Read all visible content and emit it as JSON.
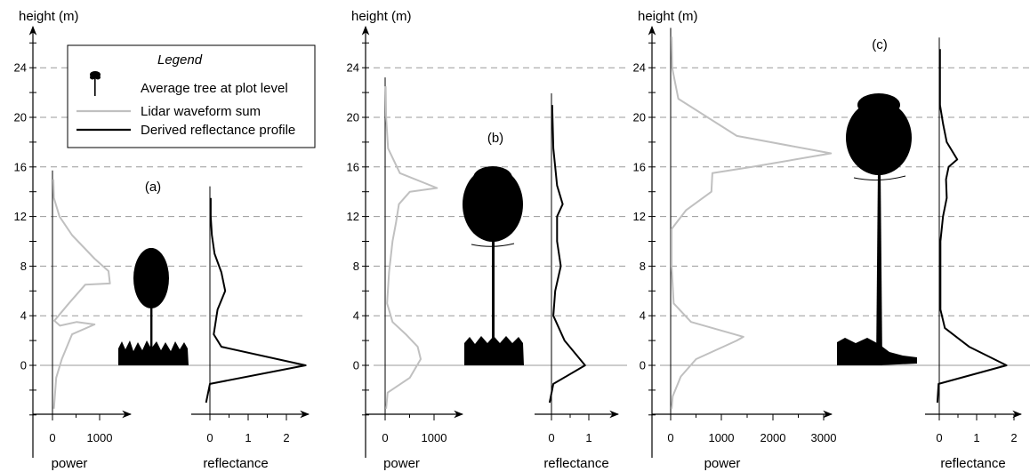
{
  "colors": {
    "lidar_waveform": "#c0c0c0",
    "reflectance_profile": "#000000",
    "gridline": "#999999",
    "axis": "#000000",
    "tree": "#000000"
  },
  "legend": {
    "title": "Legend",
    "tree_label": "Average tree at plot level",
    "lidar_label": "Lidar waveform sum",
    "reflectance_label": "Derived reflectance profile"
  },
  "chart_data": [
    {
      "type": "line",
      "panel_label": "(a)",
      "height_axis_label": "height (m)",
      "height_ticks": [
        "24",
        "20",
        "16",
        "12",
        "8",
        "4",
        "0"
      ],
      "height_range": [
        -4,
        26
      ],
      "gridlines": [
        0,
        4,
        8,
        12,
        16,
        20,
        24
      ],
      "power": {
        "xlabel": "power",
        "xticks": [
          "0",
          "1000"
        ],
        "xlim": [
          -100,
          1600
        ],
        "series": [
          {
            "name": "Lidar waveform sum",
            "x": [
              30,
              80,
              200,
              420,
              900,
              520,
              160,
              40,
              350,
              700,
              1230,
              1200,
              900,
              420,
              150,
              30,
              20
            ],
            "y": [
              -3.5,
              -1,
              0.5,
              2.5,
              3.3,
              3.5,
              3.2,
              3.6,
              5,
              6.5,
              6.6,
              7.6,
              8.6,
              10.5,
              12,
              13.5,
              15
            ]
          }
        ]
      },
      "reflectance": {
        "xlabel": "reflectance",
        "xticks": [
          "0",
          "1",
          "2"
        ],
        "xlim": [
          -0.1,
          2.7
        ],
        "series": [
          {
            "name": "Derived reflectance profile",
            "x": [
              -0.1,
              0,
              2.5,
              0.3,
              0.1,
              0.2,
              0.4,
              0.3,
              0.12,
              0.05,
              0.02,
              0.02
            ],
            "y": [
              -3,
              -1.5,
              0,
              1.5,
              2.5,
              4.5,
              6,
              7.5,
              9,
              10.5,
              12,
              13.5
            ]
          }
        ]
      }
    },
    {
      "type": "line",
      "panel_label": "(b)",
      "height_axis_label": "height (m)",
      "height_ticks": [
        "24",
        "20",
        "16",
        "12",
        "8",
        "4",
        "0"
      ],
      "height_range": [
        -4,
        26
      ],
      "gridlines": [
        0,
        4,
        8,
        12,
        16,
        20,
        24
      ],
      "power": {
        "xlabel": "power",
        "xticks": [
          "0",
          "1000"
        ],
        "xlim": [
          -100,
          1600
        ],
        "series": [
          {
            "name": "Lidar waveform sum",
            "x": [
              20,
              50,
              500,
              720,
              660,
              420,
              150,
              40,
              80,
              150,
              220,
              280,
              500,
              1050,
              300,
              60,
              20,
              10
            ],
            "y": [
              -3.5,
              -2.2,
              -1,
              0.5,
              1.5,
              2.5,
              3.5,
              5,
              7.5,
              10,
              11.5,
              13,
              14,
              14.3,
              15.5,
              17.5,
              20,
              22.5
            ]
          }
        ]
      },
      "reflectance": {
        "xlabel": "reflectance",
        "xticks": [
          "0",
          "1"
        ],
        "xlim": [
          -0.1,
          2.2
        ],
        "series": [
          {
            "name": "Derived reflectance profile",
            "x": [
              -0.05,
              0.05,
              0.9,
              0.35,
              0.05,
              0.1,
              0.25,
              0.15,
              0.15,
              0.3,
              0.15,
              0.05,
              0.02
            ],
            "y": [
              -3,
              -1.5,
              0,
              2,
              4,
              6,
              8,
              10,
              12,
              13,
              14.5,
              17.5,
              21
            ]
          }
        ]
      }
    },
    {
      "type": "line",
      "panel_label": "(c)",
      "height_axis_label": "height (m)",
      "height_ticks": [
        "24",
        "20",
        "16",
        "12",
        "8",
        "4",
        "0"
      ],
      "height_range": [
        -4,
        26
      ],
      "gridlines": [
        0,
        4,
        8,
        12,
        16,
        20,
        24
      ],
      "power": {
        "xlabel": "power",
        "xticks": [
          "0",
          "1000",
          "2000",
          "3000"
        ],
        "xlim": [
          -200,
          4300
        ],
        "series": [
          {
            "name": "Lidar waveform sum",
            "x": [
              20,
              40,
              200,
              500,
              1300,
              1430,
              400,
              60,
              20,
              20,
              300,
              800,
              820,
              1600,
              3150,
              1300,
              150,
              30,
              20
            ],
            "y": [
              -3.5,
              -2.5,
              -0.9,
              0.5,
              2,
              2.3,
              3.5,
              5,
              8,
              11,
              12.5,
              14,
              15.5,
              16,
              17.1,
              18.5,
              21.5,
              24,
              26.5
            ]
          }
        ]
      },
      "reflectance": {
        "xlabel": "reflectance",
        "xticks": [
          "0",
          "1",
          "2"
        ],
        "xlim": [
          -0.1,
          2.7
        ],
        "series": [
          {
            "name": "Derived reflectance profile",
            "x": [
              -0.05,
              -0.02,
              1.8,
              0.8,
              0.15,
              0.03,
              0.03,
              0.1,
              0.2,
              0.18,
              0.25,
              0.48,
              0.2,
              0.1,
              0.02,
              0.02
            ],
            "y": [
              -3,
              -1.5,
              0,
              1.5,
              3,
              4.5,
              10,
              12,
              13.5,
              15,
              16,
              16.6,
              18,
              19.5,
              21,
              25.5
            ]
          }
        ]
      }
    }
  ]
}
